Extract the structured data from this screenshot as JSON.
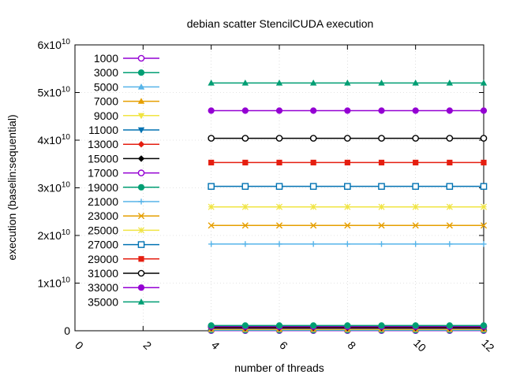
{
  "chart_data": {
    "type": "line",
    "title": "debian scatter StencilCUDA execution",
    "xlabel": "number of threads",
    "ylabel": "execution (baselin:sequential)",
    "xlim": [
      0,
      12
    ],
    "ylim": [
      0,
      60000000000
    ],
    "x_ticks": [
      "0",
      "2",
      "4",
      "6",
      "8",
      "10",
      "12"
    ],
    "y_ticks": [
      {
        "base": "0",
        "exp": ""
      },
      {
        "base": "1x10",
        "exp": "10"
      },
      {
        "base": "2x10",
        "exp": "10"
      },
      {
        "base": "3x10",
        "exp": "10"
      },
      {
        "base": "4x10",
        "exp": "10"
      },
      {
        "base": "5x10",
        "exp": "10"
      },
      {
        "base": "6x10",
        "exp": "10"
      }
    ],
    "grid": true,
    "legend_position": "top-left",
    "x": [
      4,
      5,
      6,
      7,
      8,
      9,
      10,
      11,
      12
    ],
    "series": [
      {
        "name": "1000",
        "color": "#9400d3",
        "marker": "circle-open",
        "value": 50000000
      },
      {
        "name": "3000",
        "color": "#009e73",
        "marker": "circle-filled",
        "value": 120000000
      },
      {
        "name": "5000",
        "color": "#56b4e9",
        "marker": "triangle-up",
        "value": 190000000
      },
      {
        "name": "7000",
        "color": "#e69f00",
        "marker": "triangle-up",
        "value": 280000000
      },
      {
        "name": "9000",
        "color": "#f0e442",
        "marker": "triangle-down",
        "value": 360000000
      },
      {
        "name": "11000",
        "color": "#0072b2",
        "marker": "triangle-down",
        "value": 450000000
      },
      {
        "name": "13000",
        "color": "#e51e10",
        "marker": "diamond",
        "value": 560000000
      },
      {
        "name": "15000",
        "color": "#000000",
        "marker": "diamond",
        "value": 700000000
      },
      {
        "name": "17000",
        "color": "#9400d3",
        "marker": "circle-open",
        "value": 900000000
      },
      {
        "name": "19000",
        "color": "#009e73",
        "marker": "circle-filled",
        "value": 1100000000
      },
      {
        "name": "21000",
        "color": "#56b4e9",
        "marker": "plus",
        "value": 18200000000
      },
      {
        "name": "23000",
        "color": "#e69f00",
        "marker": "cross",
        "value": 22100000000
      },
      {
        "name": "25000",
        "color": "#f0e442",
        "marker": "star",
        "value": 26000000000
      },
      {
        "name": "27000",
        "color": "#0072b2",
        "marker": "square-open",
        "value": 30300000000
      },
      {
        "name": "29000",
        "color": "#e51e10",
        "marker": "square-filled",
        "value": 35300000000
      },
      {
        "name": "31000",
        "color": "#000000",
        "marker": "circle-open",
        "value": 40400000000
      },
      {
        "name": "33000",
        "color": "#9400d3",
        "marker": "circle-filled",
        "value": 46200000000
      },
      {
        "name": "35000",
        "color": "#009e73",
        "marker": "triangle-up",
        "value": 52000000000
      }
    ]
  }
}
